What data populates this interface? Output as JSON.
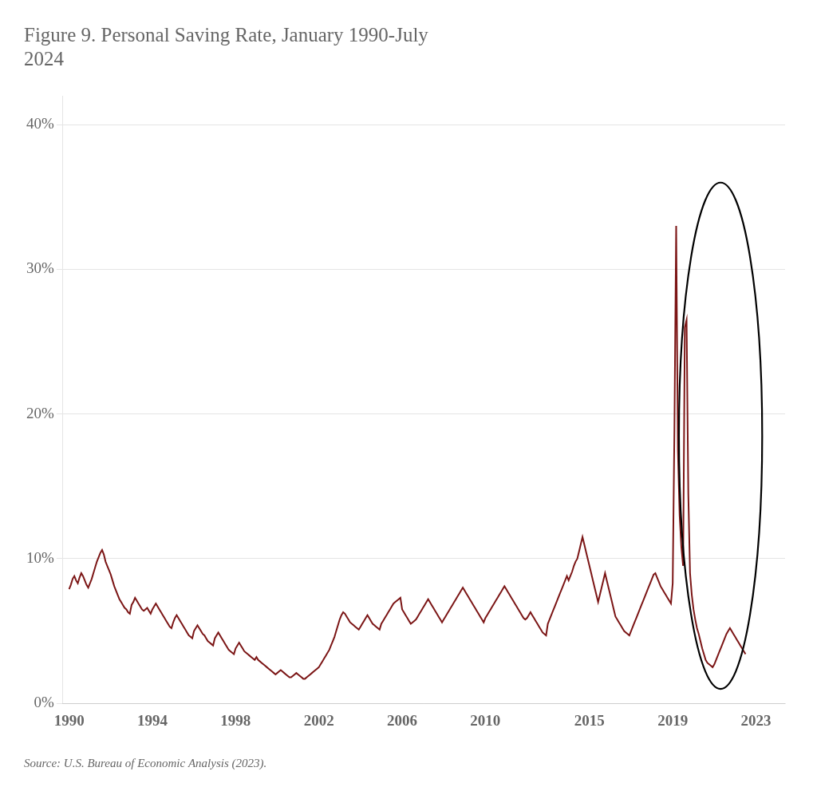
{
  "chart_data": {
    "type": "line",
    "title": [
      "Figure 9. Personal Saving Rate, January 1990-July",
      "2024"
    ],
    "annotations": [
      "Source: U.S. Bureau of Economic Analysis (2023)."
    ],
    "color": "#7B1515",
    "grid": true,
    "xlim": [
      1989.7,
      2024.4
    ],
    "xticks": [
      1990,
      1994,
      1998,
      2002,
      2006,
      2010,
      2015,
      2019,
      2023
    ],
    "ylim": [
      0,
      42
    ],
    "yticks": [
      {
        "value": 0,
        "label": "0%"
      },
      {
        "value": 10,
        "label": "10%"
      },
      {
        "value": 20,
        "label": "20%"
      },
      {
        "value": 30,
        "label": "30%"
      },
      {
        "value": 40,
        "label": "40%"
      }
    ],
    "ellipse": {
      "x": 2021.3,
      "y": 18.5,
      "width": 4.0,
      "height": 35.0
    },
    "x": [
      1990,
      1990.0833,
      1990.1667,
      1990.25,
      1990.3333,
      1990.4167,
      1990.5,
      1990.5833,
      1990.6667,
      1990.75,
      1990.8333,
      1990.9167,
      1991,
      1991.0833,
      1991.1667,
      1991.25,
      1991.3333,
      1991.4167,
      1991.5,
      1991.5833,
      1991.6667,
      1991.75,
      1991.8333,
      1991.9167,
      1992,
      1992.0833,
      1992.1667,
      1992.25,
      1992.3333,
      1992.4167,
      1992.5,
      1992.5833,
      1992.6667,
      1992.75,
      1992.8333,
      1992.9167,
      1993,
      1993.0833,
      1993.1667,
      1993.25,
      1993.3333,
      1993.4167,
      1993.5,
      1993.5833,
      1993.6667,
      1993.75,
      1993.8333,
      1993.9167,
      1994,
      1994.0833,
      1994.1667,
      1994.25,
      1994.3333,
      1994.4167,
      1994.5,
      1994.5833,
      1994.6667,
      1994.75,
      1994.8333,
      1994.9167,
      1995,
      1995.0833,
      1995.1667,
      1995.25,
      1995.3333,
      1995.4167,
      1995.5,
      1995.5833,
      1995.6667,
      1995.75,
      1995.8333,
      1995.9167,
      1996,
      1996.0833,
      1996.1667,
      1996.25,
      1996.3333,
      1996.4167,
      1996.5,
      1996.5833,
      1996.6667,
      1996.75,
      1996.8333,
      1996.9167,
      1997,
      1997.0833,
      1997.1667,
      1997.25,
      1997.3333,
      1997.4167,
      1997.5,
      1997.5833,
      1997.6667,
      1997.75,
      1997.8333,
      1997.9167,
      1998,
      1998.0833,
      1998.1667,
      1998.25,
      1998.3333,
      1998.4167,
      1998.5,
      1998.5833,
      1998.6667,
      1998.75,
      1998.8333,
      1998.9167,
      1999,
      1999.0833,
      1999.1667,
      1999.25,
      1999.3333,
      1999.4167,
      1999.5,
      1999.5833,
      1999.6667,
      1999.75,
      1999.8333,
      1999.9167,
      2000,
      2000.0833,
      2000.1667,
      2000.25,
      2000.3333,
      2000.4167,
      2000.5,
      2000.5833,
      2000.6667,
      2000.75,
      2000.8333,
      2000.9167,
      2001,
      2001.0833,
      2001.1667,
      2001.25,
      2001.3333,
      2001.4167,
      2001.5,
      2001.5833,
      2001.6667,
      2001.75,
      2001.8333,
      2001.9167,
      2002,
      2002.0833,
      2002.1667,
      2002.25,
      2002.3333,
      2002.4167,
      2002.5,
      2002.5833,
      2002.6667,
      2002.75,
      2002.8333,
      2002.9167,
      2003,
      2003.0833,
      2003.1667,
      2003.25,
      2003.3333,
      2003.4167,
      2003.5,
      2003.5833,
      2003.6667,
      2003.75,
      2003.8333,
      2003.9167,
      2004,
      2004.0833,
      2004.1667,
      2004.25,
      2004.3333,
      2004.4167,
      2004.5,
      2004.5833,
      2004.6667,
      2004.75,
      2004.8333,
      2004.9167,
      2005,
      2005.0833,
      2005.1667,
      2005.25,
      2005.3333,
      2005.4167,
      2005.5,
      2005.5833,
      2005.6667,
      2005.75,
      2005.8333,
      2005.9167,
      2006,
      2006.0833,
      2006.1667,
      2006.25,
      2006.3333,
      2006.4167,
      2006.5,
      2006.5833,
      2006.6667,
      2006.75,
      2006.8333,
      2006.9167,
      2007,
      2007.0833,
      2007.1667,
      2007.25,
      2007.3333,
      2007.4167,
      2007.5,
      2007.5833,
      2007.6667,
      2007.75,
      2007.8333,
      2007.9167,
      2008,
      2008.0833,
      2008.1667,
      2008.25,
      2008.3333,
      2008.4167,
      2008.5,
      2008.5833,
      2008.6667,
      2008.75,
      2008.8333,
      2008.9167,
      2009,
      2009.0833,
      2009.1667,
      2009.25,
      2009.3333,
      2009.4167,
      2009.5,
      2009.5833,
      2009.6667,
      2009.75,
      2009.8333,
      2009.9167,
      2010,
      2010.0833,
      2010.1667,
      2010.25,
      2010.3333,
      2010.4167,
      2010.5,
      2010.5833,
      2010.6667,
      2010.75,
      2010.8333,
      2010.9167,
      2011,
      2011.0833,
      2011.1667,
      2011.25,
      2011.3333,
      2011.4167,
      2011.5,
      2011.5833,
      2011.6667,
      2011.75,
      2011.8333,
      2011.9167,
      2012,
      2012.0833,
      2012.1667,
      2012.25,
      2012.3333,
      2012.4167,
      2012.5,
      2012.5833,
      2012.6667,
      2012.75,
      2012.8333,
      2012.9167,
      2013,
      2013.0833,
      2013.1667,
      2013.25,
      2013.3333,
      2013.4167,
      2013.5,
      2013.5833,
      2013.6667,
      2013.75,
      2013.8333,
      2013.9167,
      2014,
      2014.0833,
      2014.1667,
      2014.25,
      2014.3333,
      2014.4167,
      2014.5,
      2014.5833,
      2014.6667,
      2014.75,
      2014.8333,
      2014.9167,
      2015,
      2015.0833,
      2015.1667,
      2015.25,
      2015.3333,
      2015.4167,
      2015.5,
      2015.5833,
      2015.6667,
      2015.75,
      2015.8333,
      2015.9167,
      2016,
      2016.0833,
      2016.1667,
      2016.25,
      2016.3333,
      2016.4167,
      2016.5,
      2016.5833,
      2016.6667,
      2016.75,
      2016.8333,
      2016.9167,
      2017,
      2017.0833,
      2017.1667,
      2017.25,
      2017.3333,
      2017.4167,
      2017.5,
      2017.5833,
      2017.6667,
      2017.75,
      2017.8333,
      2017.9167,
      2018,
      2018.0833,
      2018.1667,
      2018.25,
      2018.3333,
      2018.4167,
      2018.5,
      2018.5833,
      2018.6667,
      2018.75,
      2018.8333,
      2018.9167,
      2019,
      2019.0833,
      2019.1667,
      2019.25,
      2019.3333,
      2019.4167,
      2019.5,
      2019.5833,
      2019.6667,
      2019.75,
      2019.8333,
      2019.9167,
      2020,
      2020.0833,
      2020.1667,
      2020.25,
      2020.3333,
      2020.4167,
      2020.5,
      2020.5833,
      2020.6667,
      2020.75,
      2020.8333,
      2020.9167,
      2021,
      2021.0833,
      2021.1667,
      2021.25,
      2021.3333,
      2021.4167,
      2021.5,
      2021.5833,
      2021.6667,
      2021.75,
      2021.8333,
      2021.9167,
      2022,
      2022.0833,
      2022.1667,
      2022.25,
      2022.3333,
      2022.4167,
      2022.5
    ],
    "values": [
      7.9,
      8.2,
      8.6,
      8.8,
      8.5,
      8.3,
      8.7,
      9.0,
      8.8,
      8.5,
      8.2,
      8.0,
      8.3,
      8.6,
      9.0,
      9.4,
      9.8,
      10.1,
      10.4,
      10.6,
      10.3,
      9.8,
      9.5,
      9.2,
      8.9,
      8.5,
      8.1,
      7.8,
      7.5,
      7.2,
      7.0,
      6.8,
      6.6,
      6.5,
      6.3,
      6.2,
      6.8,
      7.0,
      7.3,
      7.1,
      6.9,
      6.7,
      6.5,
      6.4,
      6.5,
      6.6,
      6.4,
      6.2,
      6.5,
      6.7,
      6.9,
      6.7,
      6.5,
      6.3,
      6.1,
      5.9,
      5.7,
      5.5,
      5.3,
      5.2,
      5.6,
      5.9,
      6.1,
      5.9,
      5.7,
      5.5,
      5.3,
      5.1,
      4.9,
      4.7,
      4.6,
      4.5,
      5.0,
      5.2,
      5.4,
      5.2,
      5.0,
      4.8,
      4.7,
      4.5,
      4.3,
      4.2,
      4.1,
      4.0,
      4.5,
      4.7,
      4.9,
      4.7,
      4.5,
      4.3,
      4.1,
      3.9,
      3.7,
      3.6,
      3.5,
      3.4,
      3.8,
      4.0,
      4.2,
      4.0,
      3.8,
      3.6,
      3.5,
      3.4,
      3.3,
      3.2,
      3.1,
      3.0,
      3.2,
      3.0,
      2.9,
      2.8,
      2.7,
      2.6,
      2.5,
      2.4,
      2.3,
      2.2,
      2.1,
      2.0,
      2.1,
      2.2,
      2.3,
      2.2,
      2.1,
      2.0,
      1.9,
      1.8,
      1.8,
      1.9,
      2.0,
      2.1,
      2.0,
      1.9,
      1.8,
      1.7,
      1.7,
      1.8,
      1.9,
      2.0,
      2.1,
      2.2,
      2.3,
      2.4,
      2.5,
      2.7,
      2.9,
      3.1,
      3.3,
      3.5,
      3.7,
      4.0,
      4.3,
      4.6,
      5.0,
      5.4,
      5.8,
      6.1,
      6.3,
      6.2,
      6.0,
      5.8,
      5.6,
      5.5,
      5.4,
      5.3,
      5.2,
      5.1,
      5.3,
      5.5,
      5.7,
      5.9,
      6.1,
      5.9,
      5.7,
      5.5,
      5.4,
      5.3,
      5.2,
      5.1,
      5.5,
      5.7,
      5.9,
      6.1,
      6.3,
      6.5,
      6.7,
      6.9,
      7.0,
      7.1,
      7.2,
      7.3,
      6.5,
      6.3,
      6.1,
      5.9,
      5.7,
      5.5,
      5.6,
      5.7,
      5.8,
      6.0,
      6.2,
      6.4,
      6.6,
      6.8,
      7.0,
      7.2,
      7.0,
      6.8,
      6.6,
      6.4,
      6.2,
      6.0,
      5.8,
      5.6,
      5.8,
      6.0,
      6.2,
      6.4,
      6.6,
      6.8,
      7.0,
      7.2,
      7.4,
      7.6,
      7.8,
      8.0,
      7.8,
      7.6,
      7.4,
      7.2,
      7.0,
      6.8,
      6.6,
      6.4,
      6.2,
      6.0,
      5.8,
      5.6,
      5.9,
      6.1,
      6.3,
      6.5,
      6.7,
      6.9,
      7.1,
      7.3,
      7.5,
      7.7,
      7.9,
      8.1,
      7.9,
      7.7,
      7.5,
      7.3,
      7.1,
      6.9,
      6.7,
      6.5,
      6.3,
      6.1,
      5.9,
      5.8,
      5.9,
      6.1,
      6.3,
      6.1,
      5.9,
      5.7,
      5.5,
      5.3,
      5.1,
      4.9,
      4.8,
      4.7,
      5.5,
      5.8,
      6.1,
      6.4,
      6.7,
      7.0,
      7.3,
      7.6,
      7.9,
      8.2,
      8.5,
      8.8,
      8.5,
      8.8,
      9.1,
      9.5,
      9.8,
      10.0,
      10.5,
      11.0,
      11.5,
      11.0,
      10.5,
      10.0,
      9.5,
      9.0,
      8.5,
      8.0,
      7.5,
      7.0,
      7.5,
      8.0,
      8.5,
      9.0,
      8.5,
      8.0,
      7.5,
      7.0,
      6.5,
      6.0,
      5.8,
      5.6,
      5.4,
      5.2,
      5.0,
      4.9,
      4.8,
      4.7,
      5.0,
      5.3,
      5.6,
      5.9,
      6.2,
      6.5,
      6.8,
      7.1,
      7.4,
      7.7,
      8.0,
      8.3,
      8.6,
      8.9,
      9.0,
      8.7,
      8.4,
      8.1,
      7.9,
      7.7,
      7.5,
      7.3,
      7.1,
      6.9,
      8.3,
      19.0,
      33.0,
      17.5,
      13.0,
      10.8,
      9.5,
      26.0,
      26.5,
      14.5,
      9.0,
      7.5,
      6.5,
      5.8,
      5.2,
      4.8,
      4.3,
      3.8,
      3.4,
      3.0,
      2.8,
      2.7,
      2.6,
      2.5,
      2.7,
      3.0,
      3.3,
      3.6,
      3.9,
      4.2,
      4.5,
      4.8,
      5.0,
      5.2,
      5.0,
      4.8,
      4.6,
      4.4,
      4.2,
      4.0,
      3.8,
      3.6,
      3.4
    ]
  }
}
